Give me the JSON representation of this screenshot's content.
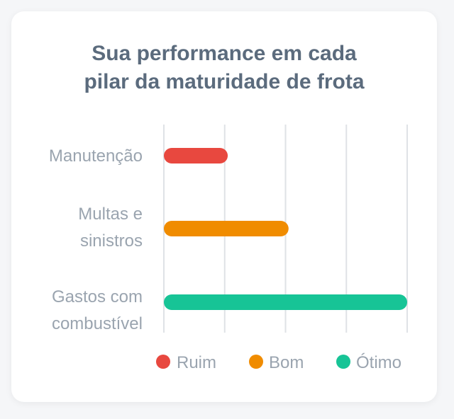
{
  "chart_data": {
    "type": "bar",
    "orientation": "horizontal",
    "title": "Sua performance em cada\npilar da maturidade de frota",
    "categories": [
      [
        "Manutenção"
      ],
      [
        "Multas e",
        "sinistros"
      ],
      [
        "Gastos com",
        "combustível"
      ]
    ],
    "values": [
      1.05,
      2.05,
      4.0
    ],
    "bar_colors": [
      "#e8483f",
      "#f08c00",
      "#17c496"
    ],
    "xlim": [
      0,
      4
    ],
    "grid": true,
    "legend": {
      "placement": "bottom",
      "entries": [
        {
          "label": "Ruim",
          "color": "#e8483f"
        },
        {
          "label": "Bom",
          "color": "#f08c00"
        },
        {
          "label": "Ótimo",
          "color": "#17c496"
        }
      ]
    }
  }
}
